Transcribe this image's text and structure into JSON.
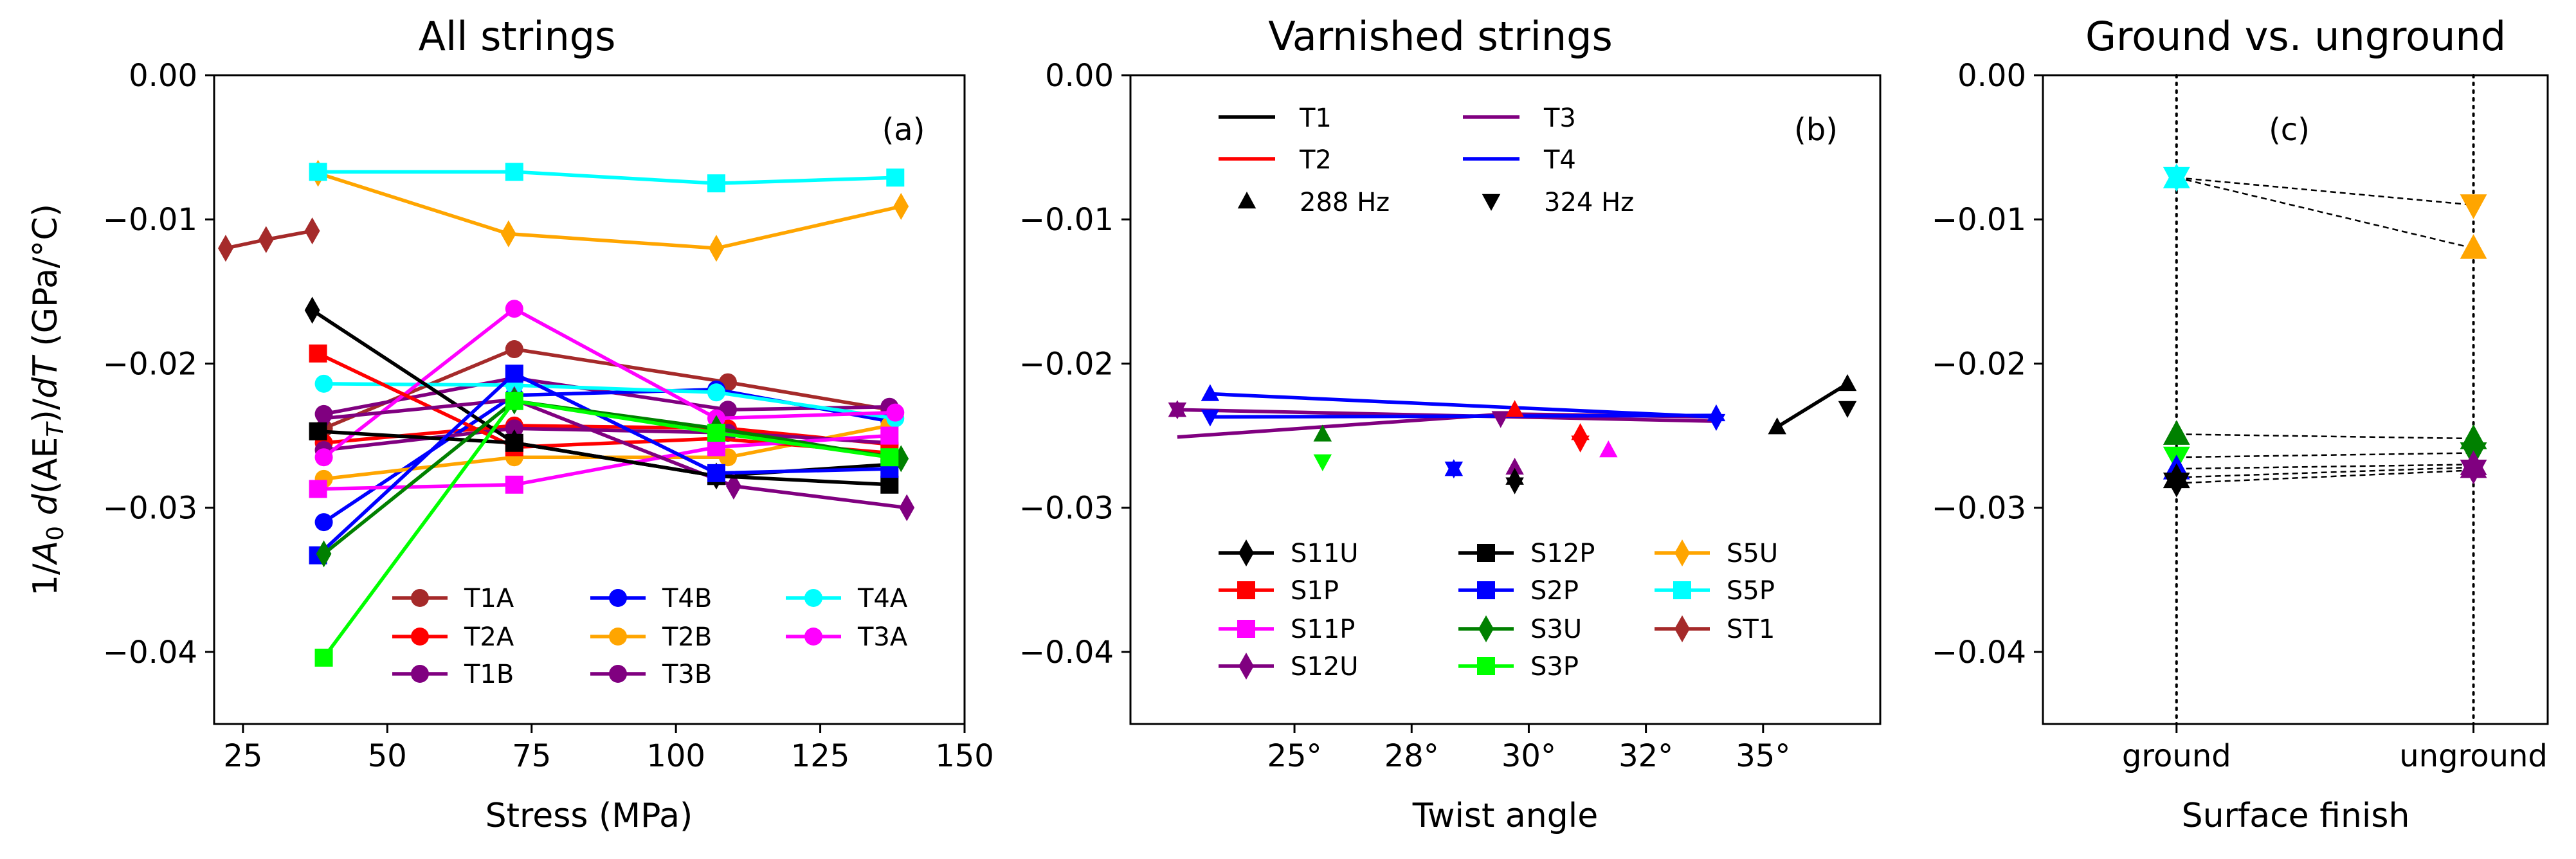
{
  "chart_data": [
    {
      "type": "line",
      "panel_label": "(a)",
      "title": "All strings",
      "xlabel": "Stress (MPa)",
      "ylabel": "1/A₀ d(AE_T)/dT (GPa/°C)",
      "ylabel_parts": {
        "pre": "1/",
        "a": "A",
        "a_sub": "0",
        "d1": " d",
        "aet": "(AE",
        "t_sub": "T",
        "close": ")/",
        "d2": "dT",
        "unit": " (GPa/°C)"
      },
      "xlim": [
        20,
        150
      ],
      "ylim": [
        -0.045,
        0.0
      ],
      "xticks": [
        25,
        50,
        75,
        100,
        125,
        150
      ],
      "xtick_labels": [
        "25",
        "50",
        "75",
        "100",
        "125",
        "150"
      ],
      "yticks": [
        0.0,
        -0.01,
        -0.02,
        -0.03,
        -0.04
      ],
      "ytick_labels": [
        "0.00",
        "−0.01",
        "−0.02",
        "−0.03",
        "−0.04"
      ],
      "legend": {
        "placement": "bottom-right",
        "columns": 3
      },
      "series": [
        {
          "name": "T1A",
          "color": "#a52a2a",
          "marker": "circle",
          "x": [
            39,
            72,
            109,
            137
          ],
          "y": [
            -0.0245,
            -0.019,
            -0.0213,
            -0.0232
          ],
          "legend": true
        },
        {
          "name": "T2A",
          "color": "#ff0000",
          "marker": "circle",
          "x": [
            39,
            72,
            109,
            137
          ],
          "y": [
            -0.0255,
            -0.0243,
            -0.0245,
            -0.0256
          ],
          "legend": true
        },
        {
          "name": "T1B",
          "color": "#800080",
          "marker": "circle",
          "x": [
            39,
            72,
            109,
            137
          ],
          "y": [
            -0.0235,
            -0.021,
            -0.0232,
            -0.023
          ],
          "legend": true
        },
        {
          "name": "T4B",
          "color": "#0000ff",
          "marker": "circle",
          "x": [
            39,
            72,
            107,
            137
          ],
          "y": [
            -0.031,
            -0.0222,
            -0.0218,
            -0.024
          ],
          "legend": true
        },
        {
          "name": "T2B",
          "color": "#ffa500",
          "marker": "circle",
          "x": [
            39,
            72,
            109,
            137
          ],
          "y": [
            -0.028,
            -0.0265,
            -0.0265,
            -0.0243
          ],
          "legend": true
        },
        {
          "name": "T3B",
          "color": "#800080",
          "marker": "circle",
          "x": [
            39,
            72,
            109,
            137
          ],
          "y": [
            -0.026,
            -0.0245,
            -0.0248,
            -0.0255
          ],
          "legend": true
        },
        {
          "name": "T4A",
          "color": "#00ffff",
          "marker": "circle",
          "x": [
            39,
            72,
            107,
            138
          ],
          "y": [
            -0.0214,
            -0.0215,
            -0.022,
            -0.0238
          ],
          "legend": true
        },
        {
          "name": "T3A",
          "color": "#ff00ff",
          "marker": "circle",
          "x": [
            39,
            72,
            107,
            138
          ],
          "y": [
            -0.0265,
            -0.0162,
            -0.0238,
            -0.0234
          ],
          "legend": true
        },
        {
          "name": "S11U",
          "color": "#000000",
          "marker": "thin-diamond",
          "x": [
            37,
            72,
            107,
            137
          ],
          "y": [
            -0.0163,
            -0.0255,
            -0.0278,
            -0.027
          ],
          "legend": false
        },
        {
          "name": "S1P",
          "color": "#ff0000",
          "marker": "square",
          "x": [
            38,
            72,
            107,
            137
          ],
          "y": [
            -0.0193,
            -0.0258,
            -0.0252,
            -0.0262
          ],
          "legend": false
        },
        {
          "name": "S11P",
          "color": "#ff00ff",
          "marker": "square",
          "x": [
            38,
            72,
            107,
            137
          ],
          "y": [
            -0.0287,
            -0.0284,
            -0.0258,
            -0.025
          ],
          "legend": false
        },
        {
          "name": "S12U",
          "color": "#800080",
          "marker": "thin-diamond",
          "x": [
            39,
            72,
            110,
            140
          ],
          "y": [
            -0.0238,
            -0.0225,
            -0.0285,
            -0.03
          ],
          "legend": false
        },
        {
          "name": "S12P",
          "color": "#000000",
          "marker": "square",
          "x": [
            38,
            72,
            107,
            137
          ],
          "y": [
            -0.0247,
            -0.0255,
            -0.0278,
            -0.0284
          ],
          "legend": false
        },
        {
          "name": "S2P",
          "color": "#0000ff",
          "marker": "square",
          "x": [
            38,
            72,
            107,
            137
          ],
          "y": [
            -0.0333,
            -0.0207,
            -0.0276,
            -0.0273
          ],
          "legend": false
        },
        {
          "name": "S3U",
          "color": "#008000",
          "marker": "thin-diamond",
          "x": [
            39,
            72,
            107,
            139
          ],
          "y": [
            -0.0332,
            -0.0226,
            -0.0245,
            -0.0266
          ],
          "legend": false
        },
        {
          "name": "S3P",
          "color": "#00ff00",
          "marker": "square",
          "x": [
            39,
            72,
            107,
            137
          ],
          "y": [
            -0.0404,
            -0.0226,
            -0.0248,
            -0.0265
          ],
          "legend": false
        },
        {
          "name": "S5U",
          "color": "#ffa500",
          "marker": "thin-diamond",
          "x": [
            38,
            71,
            107,
            139
          ],
          "y": [
            -0.0068,
            -0.011,
            -0.012,
            -0.0091
          ],
          "legend": false
        },
        {
          "name": "S5P",
          "color": "#00ffff",
          "marker": "square",
          "x": [
            38,
            72,
            107,
            138
          ],
          "y": [
            -0.0067,
            -0.0067,
            -0.0075,
            -0.0071
          ],
          "legend": false
        },
        {
          "name": "ST1",
          "color": "#a52a2a",
          "marker": "thin-diamond",
          "x": [
            22,
            29,
            37
          ],
          "y": [
            -0.012,
            -0.0114,
            -0.0108
          ],
          "legend": false
        }
      ]
    },
    {
      "type": "line",
      "panel_label": "(b)",
      "title": "Varnished strings",
      "xlabel": "Twist angle",
      "ylabel": "",
      "xlim": [
        21.5,
        37.5
      ],
      "ylim": [
        -0.045,
        0.0
      ],
      "xticks": [
        25,
        27.5,
        30,
        32.5,
        35
      ],
      "xtick_labels": [
        "25°",
        "28°",
        "30°",
        "32°",
        "35°"
      ],
      "yticks": [
        0.0,
        -0.01,
        -0.02,
        -0.03,
        -0.04
      ],
      "ytick_labels": [
        "0.00",
        "−0.01",
        "−0.02",
        "−0.03",
        "−0.04"
      ],
      "top_legend": {
        "placement": "top-left",
        "items": [
          {
            "label": "T1",
            "color": "#000000",
            "kind": "line"
          },
          {
            "label": "T3",
            "color": "#800080",
            "kind": "line"
          },
          {
            "label": "T2",
            "color": "#ff0000",
            "kind": "line"
          },
          {
            "label": "T4",
            "color": "#0000ff",
            "kind": "line"
          },
          {
            "label": "288 Hz",
            "color": "#000000",
            "kind": "marker-up"
          },
          {
            "label": "324 Hz",
            "color": "#000000",
            "kind": "marker-down"
          }
        ]
      },
      "bottom_legend": {
        "placement": "bottom",
        "columns": 3,
        "items": [
          {
            "label": "S11U",
            "color": "#000000",
            "marker": "thin-diamond"
          },
          {
            "label": "S12P",
            "color": "#000000",
            "marker": "square"
          },
          {
            "label": "S5U",
            "color": "#ffa500",
            "marker": "thin-diamond"
          },
          {
            "label": "S1P",
            "color": "#ff0000",
            "marker": "square"
          },
          {
            "label": "S2P",
            "color": "#0000ff",
            "marker": "square"
          },
          {
            "label": "S5P",
            "color": "#00ffff",
            "marker": "square"
          },
          {
            "label": "S11P",
            "color": "#ff00ff",
            "marker": "square"
          },
          {
            "label": "S3U",
            "color": "#008000",
            "marker": "thin-diamond"
          },
          {
            "label": "ST1",
            "color": "#a52a2a",
            "marker": "thin-diamond"
          },
          {
            "label": "S12U",
            "color": "#800080",
            "marker": "thin-diamond"
          },
          {
            "label": "S3P",
            "color": "#00ff00",
            "marker": "square"
          }
        ]
      },
      "lines": [
        {
          "name": "T3",
          "color": "#800080",
          "x": [
            22.5,
            29.5,
            34.0
          ],
          "y": [
            -0.0251,
            -0.0235,
            -0.0237
          ]
        },
        {
          "name": "T3",
          "color": "#800080",
          "x": [
            22.5,
            34.0
          ],
          "y": [
            -0.0232,
            -0.024
          ]
        },
        {
          "name": "T4",
          "color": "#0000ff",
          "x": [
            23.2,
            34.0
          ],
          "y": [
            -0.0221,
            -0.0237
          ]
        },
        {
          "name": "T4",
          "color": "#0000ff",
          "x": [
            23.2,
            34.0
          ],
          "y": [
            -0.0237,
            -0.0236
          ]
        },
        {
          "name": "T1",
          "color": "#000000",
          "x": [
            35.3,
            36.8
          ],
          "y": [
            -0.0244,
            -0.0214
          ]
        }
      ],
      "points": [
        {
          "color": "#800080",
          "marker": "up",
          "x": 22.5,
          "y": -0.0232
        },
        {
          "color": "#800080",
          "marker": "down",
          "x": 22.5,
          "y": -0.0232
        },
        {
          "color": "#0000ff",
          "marker": "up",
          "x": 23.2,
          "y": -0.0221
        },
        {
          "color": "#0000ff",
          "marker": "down",
          "x": 23.2,
          "y": -0.0237
        },
        {
          "color": "#008000",
          "marker": "up",
          "x": 25.6,
          "y": -0.0249
        },
        {
          "color": "#00ff00",
          "marker": "down",
          "x": 25.6,
          "y": -0.0268
        },
        {
          "color": "#0000ff",
          "marker": "up",
          "x": 28.4,
          "y": -0.0273
        },
        {
          "color": "#0000ff",
          "marker": "down",
          "x": 28.4,
          "y": -0.0273
        },
        {
          "color": "#800080",
          "marker": "down",
          "x": 29.4,
          "y": -0.0238
        },
        {
          "color": "#ff0000",
          "marker": "up",
          "x": 29.7,
          "y": -0.0232
        },
        {
          "color": "#800080",
          "marker": "up",
          "x": 29.7,
          "y": -0.0272
        },
        {
          "color": "#000000",
          "marker": "up",
          "x": 29.7,
          "y": -0.0279
        },
        {
          "color": "#000000",
          "marker": "down",
          "x": 29.7,
          "y": -0.0284
        },
        {
          "color": "#ff0000",
          "marker": "up",
          "x": 31.1,
          "y": -0.0248
        },
        {
          "color": "#ff0000",
          "marker": "down",
          "x": 31.1,
          "y": -0.0255
        },
        {
          "color": "#ff00ff",
          "marker": "up",
          "x": 31.7,
          "y": -0.026
        },
        {
          "color": "#0000ff",
          "marker": "up",
          "x": 34.0,
          "y": -0.0235
        },
        {
          "color": "#0000ff",
          "marker": "down",
          "x": 34.0,
          "y": -0.024
        },
        {
          "color": "#000000",
          "marker": "up",
          "x": 35.3,
          "y": -0.0244
        },
        {
          "color": "#000000",
          "marker": "up",
          "x": 36.8,
          "y": -0.0214
        },
        {
          "color": "#000000",
          "marker": "down",
          "x": 36.8,
          "y": -0.0231
        }
      ]
    },
    {
      "type": "line",
      "panel_label": "(c)",
      "title": "Ground vs. unground",
      "xlabel": "Surface finish",
      "ylabel": "",
      "categories": [
        "ground",
        "unground"
      ],
      "xlim": [
        -0.45,
        1.25
      ],
      "ylim": [
        -0.045,
        0.0
      ],
      "yticks": [
        0.0,
        -0.01,
        -0.02,
        -0.03,
        -0.04
      ],
      "ytick_labels": [
        "0.00",
        "−0.01",
        "−0.02",
        "−0.03",
        "−0.04"
      ],
      "vlines_at": [
        0,
        1
      ],
      "pairs": [
        {
          "color_ground": "#00ffff",
          "color_unground": "#ffa500",
          "marker": "up",
          "y": [
            -0.0071,
            -0.012
          ]
        },
        {
          "color_ground": "#00ffff",
          "color_unground": "#ffa500",
          "marker": "down",
          "y": [
            -0.0071,
            -0.009
          ]
        },
        {
          "color_ground": "#008000",
          "color_unground": "#008000",
          "marker": "up",
          "y": [
            -0.0249,
            -0.0252
          ]
        },
        {
          "color_ground": "#00ff00",
          "color_unground": "#008000",
          "marker": "down",
          "y": [
            -0.0265,
            -0.0262
          ]
        },
        {
          "color_ground": "#0000ff",
          "color_unground": "#800080",
          "marker": "up",
          "y": [
            -0.0273,
            -0.027
          ]
        },
        {
          "color_ground": "#000000",
          "color_unground": "#800080",
          "marker": "up",
          "y": [
            -0.0279,
            -0.0272
          ]
        },
        {
          "color_ground": "#000000",
          "color_unground": "#800080",
          "marker": "down",
          "y": [
            -0.0283,
            -0.0274
          ]
        }
      ]
    }
  ]
}
